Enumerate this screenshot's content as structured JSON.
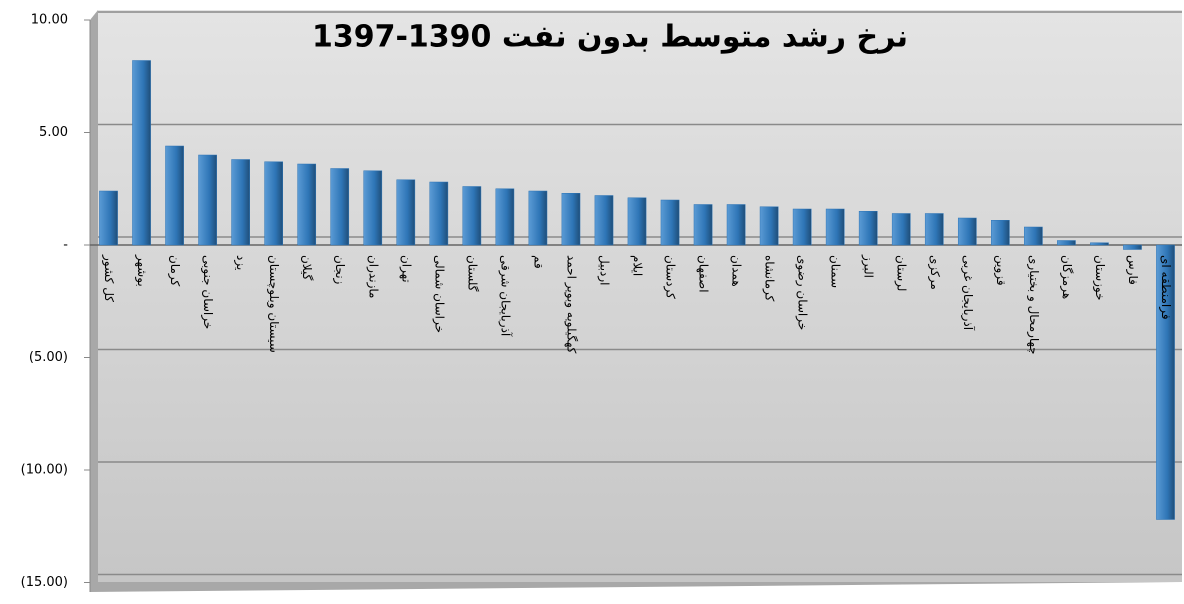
{
  "chart_data": {
    "type": "bar",
    "title": "نرخ رشد متوسط بدون نفت 1390-1397",
    "categories": [
      "کل کشور",
      "بوشهر",
      "کرمان",
      "خراسان جنوبی",
      "یزد",
      "سیستان وبلوچستان",
      "گیلان",
      "زنجان",
      "مازندران",
      "تهران",
      "خراسان شمالی",
      "گلستان",
      "آذربایجان شرقی",
      "قم",
      "کهگیلویه وبویر احمد",
      "اردبیل",
      "ایلام",
      "کردستان",
      "اصفهان",
      "همدان",
      "کرمانشاه",
      "خراسان رضوی",
      "سمنان",
      "البرز",
      "لرستان",
      "مرکزی",
      "آذربایجان غربی",
      "قزوین",
      "چهارمحال و بختیاری",
      "هرمزگان",
      "خوزستان",
      "فارس",
      "فرامنطقه ای"
    ],
    "values": [
      2.4,
      8.2,
      4.4,
      4.0,
      3.8,
      3.7,
      3.6,
      3.4,
      3.3,
      2.9,
      2.8,
      2.6,
      2.5,
      2.4,
      2.3,
      2.2,
      2.1,
      2.0,
      1.8,
      1.8,
      1.7,
      1.6,
      1.6,
      1.5,
      1.4,
      1.4,
      1.2,
      1.1,
      0.8,
      0.2,
      0.1,
      -0.2,
      -12.2
    ],
    "color": "#2e75b6",
    "ylim": [
      -15,
      10
    ],
    "yticks": [
      {
        "value": 10,
        "label": "10.00"
      },
      {
        "value": 5,
        "label": "5.00"
      },
      {
        "value": 0,
        "label": "-"
      },
      {
        "value": -5,
        "label": "(5.00)"
      },
      {
        "value": -10,
        "label": "(10.00)"
      },
      {
        "value": -15,
        "label": "(15.00)"
      }
    ],
    "grid": true
  }
}
